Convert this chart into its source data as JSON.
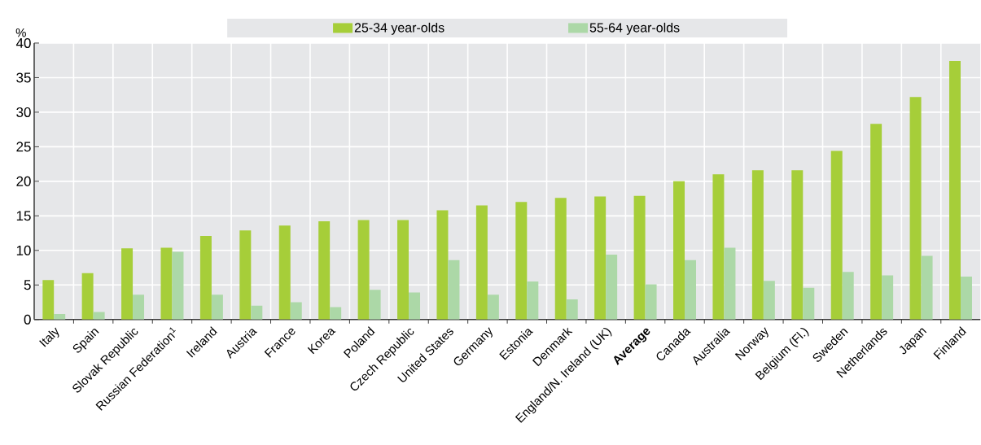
{
  "chart_data": {
    "type": "bar",
    "ylabel": "%",
    "categories": [
      "Italy",
      "Spain",
      "Slovak Republic",
      "Russian Federation$^{1}$",
      "Ireland",
      "Austria",
      "France",
      "Korea",
      "Poland",
      "Czech Republic",
      "United States",
      "Germany",
      "Estonia",
      "Denmark",
      "England/N. Ireland (UK)",
      "**Average**",
      "Canada",
      "Australia",
      "Norway",
      "Belgium (Fl.)",
      "Sweden",
      "Netherlands",
      "Japan",
      "Finland"
    ],
    "series": [
      {
        "name": "25-34 year-olds",
        "color": "#a6ce39",
        "values": [
          5.7,
          6.7,
          10.3,
          10.4,
          12.1,
          12.9,
          13.6,
          14.2,
          14.4,
          14.4,
          15.8,
          16.5,
          17.0,
          17.6,
          17.8,
          17.9,
          20.0,
          21.0,
          21.6,
          21.6,
          24.4,
          28.3,
          32.2,
          37.4
        ]
      },
      {
        "name": "55-64 year-olds",
        "color": "#acd8a7",
        "values": [
          0.8,
          1.1,
          3.6,
          9.8,
          3.6,
          2.0,
          2.5,
          1.8,
          4.3,
          3.9,
          8.6,
          3.6,
          5.5,
          2.9,
          9.4,
          5.1,
          8.6,
          10.4,
          5.6,
          4.6,
          6.9,
          6.4,
          9.2,
          6.2
        ]
      }
    ],
    "ylim": [
      0,
      40
    ],
    "yticks": [
      0,
      5,
      10,
      15,
      20,
      25,
      30,
      35,
      40
    ],
    "grid": true,
    "legend": "top"
  }
}
